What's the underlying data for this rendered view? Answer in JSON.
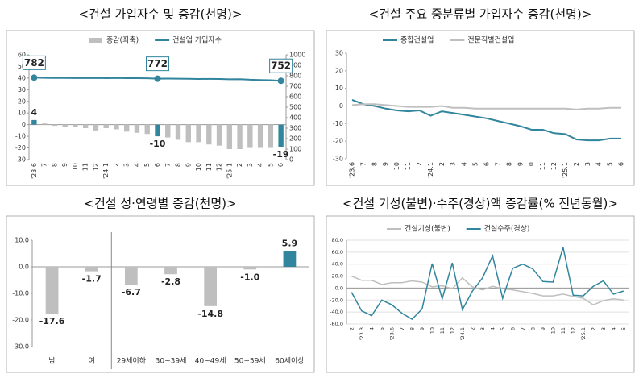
{
  "chart_data": [
    {
      "type": "bar",
      "title": "<건설 가입자수 및 증감(천명)>",
      "categories": [
        "'23.6",
        "7",
        "8",
        "9",
        "10",
        "11",
        "12",
        "'24.1",
        "2",
        "3",
        "4",
        "5",
        "6",
        "7",
        "8",
        "9",
        "10",
        "11",
        "12",
        "'25.1",
        "2",
        "3",
        "4",
        "5",
        "6"
      ],
      "series": [
        {
          "name": "증감(좌축)",
          "color": "#bfbfbf",
          "highlight_color": "#31859c",
          "values": [
            4,
            1,
            -1,
            -2,
            -2,
            -3,
            -5,
            -3,
            -4,
            -6,
            -7,
            -8,
            -10,
            -11,
            -13,
            -15,
            -15,
            -17,
            -18,
            -21,
            -21,
            -20,
            -20,
            -20,
            -19
          ],
          "value_labels": [
            "4",
            null,
            null,
            null,
            null,
            null,
            null,
            null,
            null,
            null,
            null,
            null,
            "-10",
            null,
            null,
            null,
            null,
            null,
            null,
            null,
            null,
            null,
            null,
            null,
            "-19"
          ]
        },
        {
          "name": "건설업 가입자수",
          "type": "line",
          "axis": "y2",
          "color": "#31859c",
          "values": [
            782,
            780,
            779,
            779,
            778,
            778,
            779,
            777,
            779,
            777,
            777,
            776,
            772,
            773,
            772,
            771,
            769,
            770,
            769,
            766,
            767,
            762,
            760,
            758,
            752
          ],
          "value_labels": [
            "782",
            null,
            null,
            null,
            null,
            null,
            null,
            null,
            null,
            null,
            null,
            null,
            "772",
            null,
            null,
            null,
            null,
            null,
            null,
            null,
            null,
            null,
            null,
            null,
            "752"
          ]
        }
      ],
      "ylim": [
        -30,
        60
      ],
      "yticks": [
        -30,
        -20,
        -10,
        0,
        10,
        20,
        30,
        40,
        50,
        60
      ],
      "y2lim": [
        0,
        1000
      ],
      "y2ticks": [
        0,
        100,
        200,
        300,
        400,
        500,
        600,
        700,
        800,
        900,
        1000
      ],
      "grid": false,
      "legend": "top"
    },
    {
      "type": "line",
      "title": "<건설 주요 중분류별 가입자수 증감(천명)>",
      "categories": [
        "'23.6",
        "7",
        "8",
        "9",
        "10",
        "11",
        "12",
        "'24.1",
        "2",
        "3",
        "4",
        "5",
        "6",
        "7",
        "8",
        "9",
        "10",
        "11",
        "12",
        "'25.1",
        "2",
        "3",
        "4",
        "5",
        "6"
      ],
      "series": [
        {
          "name": "종합건설업",
          "color": "#31859c",
          "values": [
            3.5,
            1,
            0,
            -1.5,
            -2.5,
            -3,
            -2.5,
            -5.5,
            -3,
            -4,
            -5,
            -6,
            -7,
            -8.5,
            -10,
            -11.5,
            -13.5,
            -13.5,
            -15.5,
            -16,
            -19,
            -19.5,
            -19.5,
            -18.5,
            -18.5
          ]
        },
        {
          "name": "전문직별건설업",
          "color": "#bfbfbf",
          "values": [
            0.5,
            1,
            1,
            0.5,
            0,
            -0.5,
            -0.5,
            -0.5,
            0,
            -1,
            -1,
            -1.5,
            -1.5,
            -1.5,
            -1.5,
            -1.5,
            -1.5,
            -1.5,
            -1.5,
            -1.5,
            -2,
            -1.5,
            -1.5,
            -1,
            -1
          ]
        }
      ],
      "ylim": [
        -30,
        30
      ],
      "yticks": [
        -30,
        -20,
        -10,
        0,
        10,
        20,
        30
      ],
      "grid": false,
      "legend": "top"
    },
    {
      "type": "bar",
      "title": "<건설 성·연령별 증감(천명)>",
      "categories": [
        "남",
        "여",
        "29세이하",
        "30~39세",
        "40~49세",
        "50~59세",
        "60세이상"
      ],
      "series": [
        {
          "colors": [
            "#bfbfbf",
            "#bfbfbf",
            "#bfbfbf",
            "#bfbfbf",
            "#bfbfbf",
            "#bfbfbf",
            "#31859c"
          ],
          "values": [
            -17.6,
            -1.7,
            -6.7,
            -2.8,
            -14.8,
            -1.0,
            5.9
          ],
          "value_labels": [
            "-17.6",
            "-1.7",
            "-6.7",
            "-2.8",
            "-14.8",
            "-1.0",
            "5.9"
          ]
        }
      ],
      "ylim": [
        -30,
        10
      ],
      "yticks": [
        {
          "value": -30,
          "label": "-30.0"
        },
        {
          "value": -20,
          "label": "-20.0"
        },
        {
          "value": -10,
          "label": "-10.0"
        },
        {
          "value": 0,
          "label": "0.0"
        },
        {
          "value": 10,
          "label": "10.0"
        }
      ],
      "grid": false
    },
    {
      "type": "line",
      "title": "<건설 기성(불변)·수주(경상)액 증감률(% 전년동월)>",
      "categories": [
        "2",
        "'23.3",
        "4",
        "5",
        "'23.6",
        "7",
        "8",
        "9",
        "10",
        "11",
        "12",
        "'24.1",
        "2",
        "3",
        "4",
        "5",
        "6",
        "7",
        "8",
        "9",
        "10",
        "11",
        "12",
        "'25.1",
        "2",
        "3",
        "4",
        "5"
      ],
      "series": [
        {
          "name": "건설기성(불변)",
          "color": "#bfbfbf",
          "values": [
            20,
            13,
            13,
            6,
            9,
            9,
            12,
            10,
            2,
            4,
            -1,
            17,
            2,
            -3,
            3,
            -1,
            -3,
            -6,
            -9,
            -13,
            -13,
            -10,
            -14,
            -17,
            -28,
            -21,
            -18,
            -20
          ]
        },
        {
          "name": "건설수주(경상)",
          "color": "#31859c",
          "values": [
            -7,
            -38,
            -46,
            -20,
            -28,
            -42,
            -52,
            -35,
            41,
            -18,
            42,
            -36,
            -5,
            17,
            54,
            -17,
            33,
            40,
            32,
            11,
            10,
            68,
            -12,
            -13,
            3,
            12,
            -10,
            -5
          ]
        }
      ],
      "ylim": [
        -60,
        80
      ],
      "yticks": [
        {
          "value": -60,
          "label": "-60.0"
        },
        {
          "value": -40,
          "label": "-40.0"
        },
        {
          "value": -20,
          "label": "-20.0"
        },
        {
          "value": 0,
          "label": "0.0"
        },
        {
          "value": 20,
          "label": "20.0"
        },
        {
          "value": 40,
          "label": "40.0"
        },
        {
          "value": 60,
          "label": "60.0"
        },
        {
          "value": 80,
          "label": "80.0"
        }
      ],
      "grid": true,
      "legend": "top-left"
    }
  ]
}
